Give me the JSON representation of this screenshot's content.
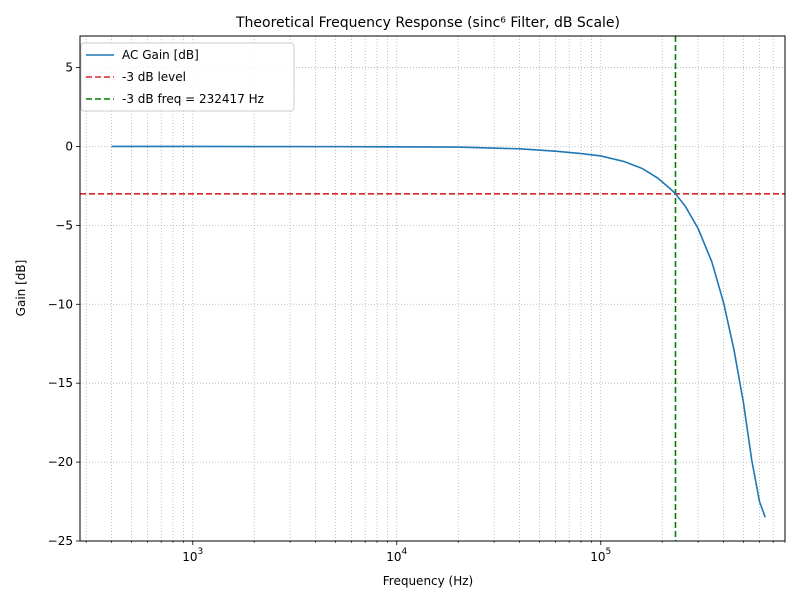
{
  "chart_data": {
    "type": "line",
    "title": "Theoretical Frequency Response (sinc⁶ Filter, dB Scale)",
    "xlabel": "Frequency (Hz)",
    "ylabel": "Gain [dB]",
    "x_scale": "log",
    "xlim": [
      280,
      800000
    ],
    "ylim": [
      -25,
      7
    ],
    "x_major_ticks": [
      {
        "value": 1000,
        "base": "10",
        "exp": "3"
      },
      {
        "value": 10000,
        "base": "10",
        "exp": "4"
      },
      {
        "value": 100000,
        "base": "10",
        "exp": "5"
      }
    ],
    "y_ticks": [
      5,
      0,
      -5,
      -10,
      -15,
      -20,
      -25
    ],
    "y_tick_labels": [
      "5",
      "0",
      "−5",
      "−10",
      "−15",
      "−20",
      "−25"
    ],
    "grid": true,
    "legend_position": "top-left",
    "series": [
      {
        "name": "AC Gain [dB]",
        "color": "#1f77b4",
        "style": "solid",
        "x": [
          400,
          1000,
          5000,
          20000,
          40000,
          60000,
          80000,
          100000,
          130000,
          160000,
          190000,
          220000,
          232417,
          260000,
          300000,
          350000,
          400000,
          450000,
          500000,
          550000,
          600000,
          640000
        ],
        "y": [
          0,
          0,
          -0.01,
          -0.04,
          -0.15,
          -0.3,
          -0.45,
          -0.6,
          -0.95,
          -1.4,
          -2.0,
          -2.7,
          -3.0,
          -3.8,
          -5.2,
          -7.3,
          -9.9,
          -12.9,
          -16.2,
          -19.9,
          -22.5,
          -23.5
        ]
      },
      {
        "name": "-3 dB level",
        "color": "#d62728",
        "style": "dashed",
        "orientation": "horizontal",
        "value": -3
      },
      {
        "name": "-3 dB freq = 232417 Hz",
        "color": "#008000",
        "style": "dashed",
        "orientation": "vertical",
        "value": 232417
      }
    ]
  }
}
